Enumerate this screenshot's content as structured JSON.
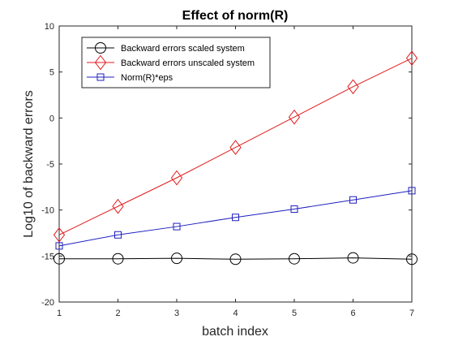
{
  "chart_data": {
    "type": "line",
    "title": "Effect of norm(R)",
    "xlabel": "batch index",
    "ylabel": "Log10 of backward errors",
    "xlim": [
      1,
      7
    ],
    "ylim": [
      -20,
      10
    ],
    "xticks": [
      1,
      2,
      3,
      4,
      5,
      6,
      7
    ],
    "yticks": [
      -20,
      -15,
      -10,
      -5,
      0,
      5,
      10
    ],
    "grid": false,
    "legend_position": "top-left",
    "x": [
      1,
      2,
      3,
      4,
      5,
      6,
      7
    ],
    "series": [
      {
        "name": "Backward errors scaled system",
        "marker": "circle",
        "color": "#000000",
        "values": [
          -15.3,
          -15.3,
          -15.25,
          -15.35,
          -15.3,
          -15.2,
          -15.35
        ]
      },
      {
        "name": "Backward errors unscaled system",
        "marker": "diamond",
        "color": "#e31a1c",
        "values": [
          -12.7,
          -9.6,
          -6.5,
          -3.2,
          0.1,
          3.4,
          6.5
        ]
      },
      {
        "name": "Norm(R)*eps",
        "marker": "square",
        "color": "#1f1fbf",
        "values": [
          -13.9,
          -12.7,
          -11.8,
          -10.8,
          -9.9,
          -8.9,
          -7.9
        ]
      }
    ]
  }
}
